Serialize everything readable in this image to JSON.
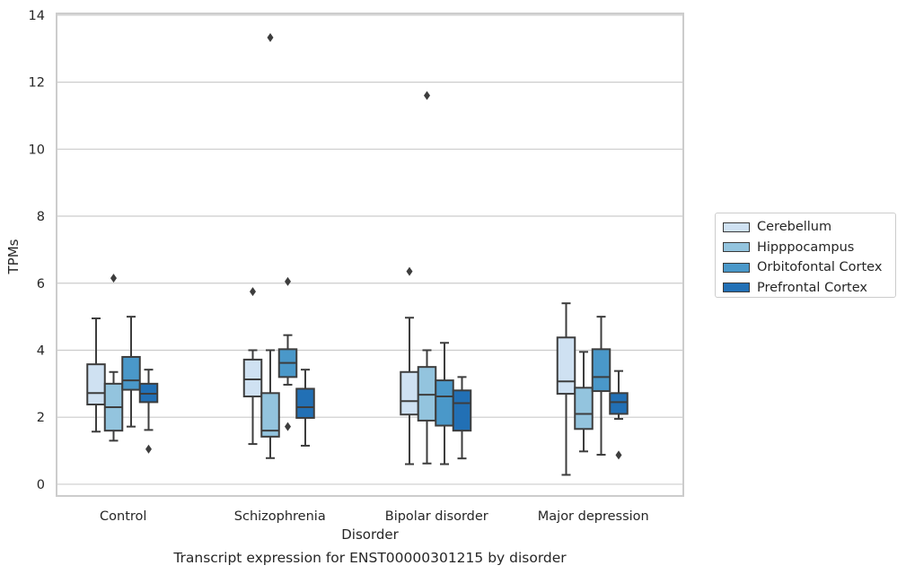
{
  "chart_data": {
    "type": "box",
    "categories": [
      "Control",
      "Schizophrenia",
      "Bipolar disorder",
      "Major depression"
    ],
    "xlabel": "Disorder",
    "ylabel": "TPMs",
    "caption": "Transcript expression for ENST00000301215 by disorder",
    "ylim": [
      -0.35,
      14.05
    ],
    "yticks": [
      "0",
      "2",
      "4",
      "6",
      "8",
      "10",
      "12",
      "14"
    ],
    "grid": "horizontal",
    "legend_position": "right",
    "series": [
      {
        "name": "Cerebellum",
        "color": "#cfe1f2",
        "boxes": [
          {
            "whisker_low": 1.57,
            "q1": 2.38,
            "median": 2.72,
            "q3": 3.58,
            "whisker_high": 4.95,
            "outliers": []
          },
          {
            "whisker_low": 1.2,
            "q1": 2.62,
            "median": 3.13,
            "q3": 3.72,
            "whisker_high": 4.0,
            "outliers": [
              5.75
            ]
          },
          {
            "whisker_low": 0.6,
            "q1": 2.08,
            "median": 2.48,
            "q3": 3.35,
            "whisker_high": 4.97,
            "outliers": [
              6.35
            ]
          },
          {
            "whisker_low": 0.28,
            "q1": 2.7,
            "median": 3.07,
            "q3": 4.38,
            "whisker_high": 5.4,
            "outliers": []
          }
        ]
      },
      {
        "name": "Hipppocampus",
        "color": "#93c4de",
        "boxes": [
          {
            "whisker_low": 1.3,
            "q1": 1.6,
            "median": 2.3,
            "q3": 3.0,
            "whisker_high": 3.35,
            "outliers": [
              6.15
            ]
          },
          {
            "whisker_low": 0.78,
            "q1": 1.42,
            "median": 1.6,
            "q3": 2.72,
            "whisker_high": 4.0,
            "outliers": [
              13.33
            ]
          },
          {
            "whisker_low": 0.62,
            "q1": 1.9,
            "median": 2.67,
            "q3": 3.5,
            "whisker_high": 4.0,
            "outliers": [
              11.6
            ]
          },
          {
            "whisker_low": 0.98,
            "q1": 1.65,
            "median": 2.1,
            "q3": 2.88,
            "whisker_high": 3.95,
            "outliers": []
          }
        ]
      },
      {
        "name": "Orbitofontal Cortex",
        "color": "#4a98c9",
        "boxes": [
          {
            "whisker_low": 1.72,
            "q1": 2.82,
            "median": 3.1,
            "q3": 3.8,
            "whisker_high": 5.0,
            "outliers": []
          },
          {
            "whisker_low": 2.97,
            "q1": 3.2,
            "median": 3.62,
            "q3": 4.03,
            "whisker_high": 4.45,
            "outliers": [
              6.05,
              1.72
            ]
          },
          {
            "whisker_low": 0.6,
            "q1": 1.75,
            "median": 2.62,
            "q3": 3.1,
            "whisker_high": 4.22,
            "outliers": []
          },
          {
            "whisker_low": 0.88,
            "q1": 2.78,
            "median": 3.2,
            "q3": 4.03,
            "whisker_high": 5.0,
            "outliers": []
          }
        ]
      },
      {
        "name": "Prefrontal Cortex",
        "color": "#2270b5",
        "boxes": [
          {
            "whisker_low": 1.62,
            "q1": 2.45,
            "median": 2.7,
            "q3": 3.0,
            "whisker_high": 3.42,
            "outliers": [
              1.05
            ]
          },
          {
            "whisker_low": 1.15,
            "q1": 1.98,
            "median": 2.3,
            "q3": 2.85,
            "whisker_high": 3.42,
            "outliers": []
          },
          {
            "whisker_low": 0.77,
            "q1": 1.6,
            "median": 2.42,
            "q3": 2.8,
            "whisker_high": 3.2,
            "outliers": []
          },
          {
            "whisker_low": 1.95,
            "q1": 2.1,
            "median": 2.45,
            "q3": 2.72,
            "whisker_high": 3.38,
            "outliers": [
              0.87
            ]
          }
        ]
      }
    ]
  }
}
